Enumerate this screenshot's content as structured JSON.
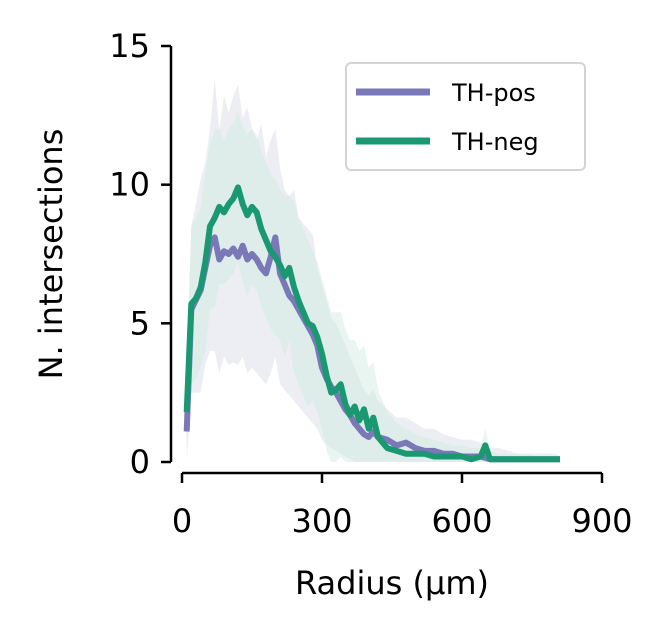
{
  "chart_data": {
    "type": "line",
    "title": "",
    "xlabel": "Radius (µm)",
    "ylabel": "N. intersections",
    "xlim": [
      0,
      900
    ],
    "ylim": [
      0,
      15
    ],
    "xticks": [
      0,
      300,
      600,
      900
    ],
    "xtick_labels": [
      "0",
      "300",
      "600",
      "900"
    ],
    "yticks": [
      0,
      5,
      10,
      15
    ],
    "ytick_labels": [
      "0",
      "5",
      "10",
      "15"
    ],
    "grid": false,
    "legend_position": "top-right",
    "series": [
      {
        "name": "TH-pos",
        "color": "#7b78b8",
        "band_color": "#dcdde8",
        "x": [
          10,
          20,
          40,
          50,
          60,
          70,
          80,
          90,
          100,
          110,
          120,
          130,
          140,
          150,
          160,
          170,
          180,
          190,
          200,
          210,
          220,
          230,
          240,
          250,
          260,
          270,
          280,
          290,
          300,
          310,
          320,
          330,
          340,
          350,
          360,
          370,
          380,
          390,
          400,
          410,
          420,
          440,
          460,
          480,
          500,
          520,
          540,
          560,
          580,
          600,
          620,
          640,
          660,
          680,
          700,
          720,
          740,
          760,
          780,
          800,
          810
        ],
        "y": [
          1.1,
          5.5,
          6.2,
          7.0,
          7.8,
          8.1,
          7.3,
          7.6,
          7.5,
          7.7,
          7.4,
          7.8,
          7.3,
          7.5,
          7.3,
          7.0,
          6.8,
          7.4,
          8.1,
          6.8,
          6.4,
          6.0,
          5.8,
          5.5,
          5.2,
          4.9,
          4.6,
          4.2,
          3.4,
          3.0,
          2.7,
          2.5,
          2.2,
          1.9,
          1.7,
          1.4,
          1.2,
          1.0,
          0.9,
          1.1,
          0.9,
          0.8,
          0.6,
          0.7,
          0.5,
          0.4,
          0.4,
          0.3,
          0.3,
          0.2,
          0.2,
          0.2,
          0.1,
          0.1,
          0.1,
          0.1,
          0.1,
          0.1,
          0.1,
          0.1,
          0.1
        ],
        "upper": [
          3.0,
          8.5,
          10.2,
          10.8,
          12.0,
          13.8,
          12.0,
          13.2,
          12.6,
          13.2,
          13.6,
          12.4,
          12.8,
          12.0,
          11.6,
          12.2,
          11.0,
          11.6,
          12.0,
          10.6,
          9.8,
          9.6,
          9.8,
          8.8,
          8.6,
          8.4,
          8.2,
          7.0,
          6.4,
          5.8,
          5.2,
          5.0,
          4.6,
          4.2,
          3.8,
          3.4,
          3.0,
          2.6,
          2.4,
          2.6,
          2.2,
          1.9,
          1.6,
          1.6,
          1.4,
          1.2,
          1.2,
          1.0,
          0.9,
          0.8,
          0.8,
          0.7,
          0.5,
          0.5,
          0.4,
          0.3,
          0.3,
          0.3,
          0.3,
          0.3,
          0.2
        ],
        "lower": [
          0.0,
          2.5,
          2.5,
          3.5,
          4.0,
          4.0,
          3.2,
          3.8,
          3.5,
          3.6,
          3.5,
          3.8,
          3.2,
          3.4,
          3.2,
          3.0,
          2.8,
          3.2,
          3.8,
          2.8,
          2.6,
          2.4,
          2.2,
          2.0,
          1.8,
          1.6,
          1.4,
          1.2,
          0.8,
          0.6,
          0.5,
          0.4,
          0.3,
          0.2,
          0.1,
          0.0,
          0.0,
          0.0,
          0.0,
          0.0,
          0.0,
          0.0,
          0.0,
          0.0,
          0.0,
          0.0,
          0.0,
          0.0,
          0.0,
          0.0,
          0.0,
          0.0,
          0.0,
          0.0,
          0.0,
          0.0,
          0.0,
          0.0,
          0.0,
          0.0,
          0.0
        ]
      },
      {
        "name": "TH-neg",
        "color": "#1a9872",
        "band_color": "#cbe9e0",
        "x": [
          10,
          20,
          30,
          40,
          50,
          60,
          70,
          80,
          90,
          100,
          110,
          120,
          130,
          140,
          150,
          160,
          170,
          180,
          190,
          200,
          210,
          220,
          230,
          240,
          250,
          260,
          270,
          280,
          290,
          300,
          310,
          320,
          330,
          340,
          350,
          360,
          370,
          380,
          390,
          400,
          410,
          420,
          440,
          460,
          480,
          500,
          520,
          540,
          560,
          580,
          600,
          620,
          640,
          650,
          660,
          680,
          700,
          720,
          740,
          760,
          780,
          800,
          810
        ],
        "y": [
          1.8,
          5.7,
          5.9,
          6.3,
          7.2,
          8.5,
          8.8,
          9.2,
          9.0,
          9.3,
          9.5,
          9.9,
          9.3,
          8.9,
          9.2,
          9.0,
          8.4,
          8.0,
          7.6,
          7.4,
          7.1,
          6.7,
          7.0,
          6.3,
          5.8,
          5.4,
          5.0,
          4.9,
          4.5,
          3.9,
          3.1,
          2.5,
          2.6,
          2.8,
          2.1,
          1.7,
          2.0,
          1.5,
          1.9,
          1.2,
          1.6,
          0.9,
          0.5,
          0.4,
          0.3,
          0.3,
          0.3,
          0.2,
          0.2,
          0.2,
          0.2,
          0.1,
          0.2,
          0.6,
          0.1,
          0.1,
          0.1,
          0.1,
          0.1,
          0.1,
          0.1,
          0.1,
          0.1
        ],
        "upper": [
          3.5,
          8.5,
          8.8,
          9.2,
          10.4,
          11.5,
          12.0,
          12.0,
          11.6,
          12.0,
          12.2,
          12.6,
          12.1,
          11.8,
          12.0,
          11.8,
          11.2,
          10.8,
          10.4,
          10.2,
          9.8,
          9.6,
          9.6,
          9.4,
          8.8,
          8.4,
          8.0,
          7.6,
          7.2,
          6.6,
          6.0,
          5.4,
          5.4,
          5.4,
          4.8,
          4.4,
          4.4,
          4.0,
          4.2,
          3.4,
          3.6,
          2.6,
          1.8,
          1.4,
          1.2,
          1.0,
          0.9,
          0.8,
          0.7,
          0.6,
          0.6,
          0.5,
          0.5,
          1.2,
          0.4,
          0.3,
          0.3,
          0.3,
          0.3,
          0.2,
          0.2,
          0.2,
          0.2
        ],
        "lower": [
          0.5,
          2.8,
          3.0,
          3.4,
          4.0,
          5.5,
          5.6,
          6.4,
          6.4,
          6.6,
          6.8,
          7.2,
          6.5,
          6.0,
          6.4,
          6.2,
          5.6,
          5.2,
          4.8,
          4.6,
          4.4,
          3.8,
          4.4,
          3.2,
          2.8,
          2.4,
          2.0,
          2.2,
          1.8,
          1.2,
          0.4,
          0.0,
          0.0,
          0.2,
          0.0,
          0.0,
          0.0,
          0.0,
          0.0,
          0.0,
          0.0,
          0.0,
          0.0,
          0.0,
          0.0,
          0.0,
          0.0,
          0.0,
          0.0,
          0.0,
          0.0,
          0.0,
          0.0,
          0.0,
          0.0,
          0.0,
          0.0,
          0.0,
          0.0,
          0.0,
          0.0,
          0.0,
          0.0
        ]
      }
    ]
  }
}
